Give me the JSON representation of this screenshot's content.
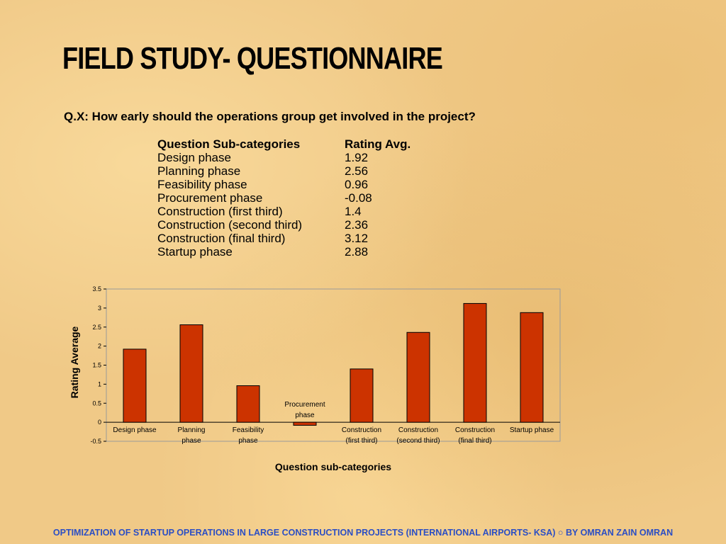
{
  "slide": {
    "title": "FIELD STUDY- QUESTIONNAIRE",
    "question": "Q.X: How early should the operations group get involved in the project?"
  },
  "table": {
    "headers": [
      "Question Sub-categories",
      "Rating Avg."
    ],
    "rows": [
      [
        "Design phase",
        "1.92"
      ],
      [
        "Planning phase",
        "2.56"
      ],
      [
        "Feasibility phase",
        "0.96"
      ],
      [
        "Procurement phase",
        "-0.08"
      ],
      [
        "Construction (first third)",
        "1.4"
      ],
      [
        "Construction (second third)",
        "2.36"
      ],
      [
        "Construction (final third)",
        "3.12"
      ],
      [
        "Startup phase",
        "2.88"
      ]
    ]
  },
  "chart_data": {
    "type": "bar",
    "categories": [
      [
        "Design phase"
      ],
      [
        "Planning",
        "phase"
      ],
      [
        "Feasibility",
        "phase"
      ],
      [
        "Procurement",
        "phase"
      ],
      [
        "Construction",
        "(first third)"
      ],
      [
        "Construction",
        "(second third)"
      ],
      [
        "Construction",
        "(final third)"
      ],
      [
        "Startup phase"
      ]
    ],
    "values": [
      1.92,
      2.56,
      0.96,
      -0.08,
      1.4,
      2.36,
      3.12,
      2.88
    ],
    "xlabel": "Question sub-categories",
    "ylabel": "Rating Average",
    "ylim": [
      -0.5,
      3.5
    ],
    "yticks": [
      "3.5",
      "3",
      "2.5",
      "2",
      "1.5",
      "1",
      "0.5",
      "0",
      "-0.5"
    ],
    "bar_color": "#cc3300",
    "grid": false
  },
  "footer": {
    "text": "OPTIMIZATION OF STARTUP OPERATIONS IN LARGE CONSTRUCTION  PROJECTS (INTERNATIONAL AIRPORTS- KSA) ○ BY OMRAN ZAIN OMRAN"
  }
}
